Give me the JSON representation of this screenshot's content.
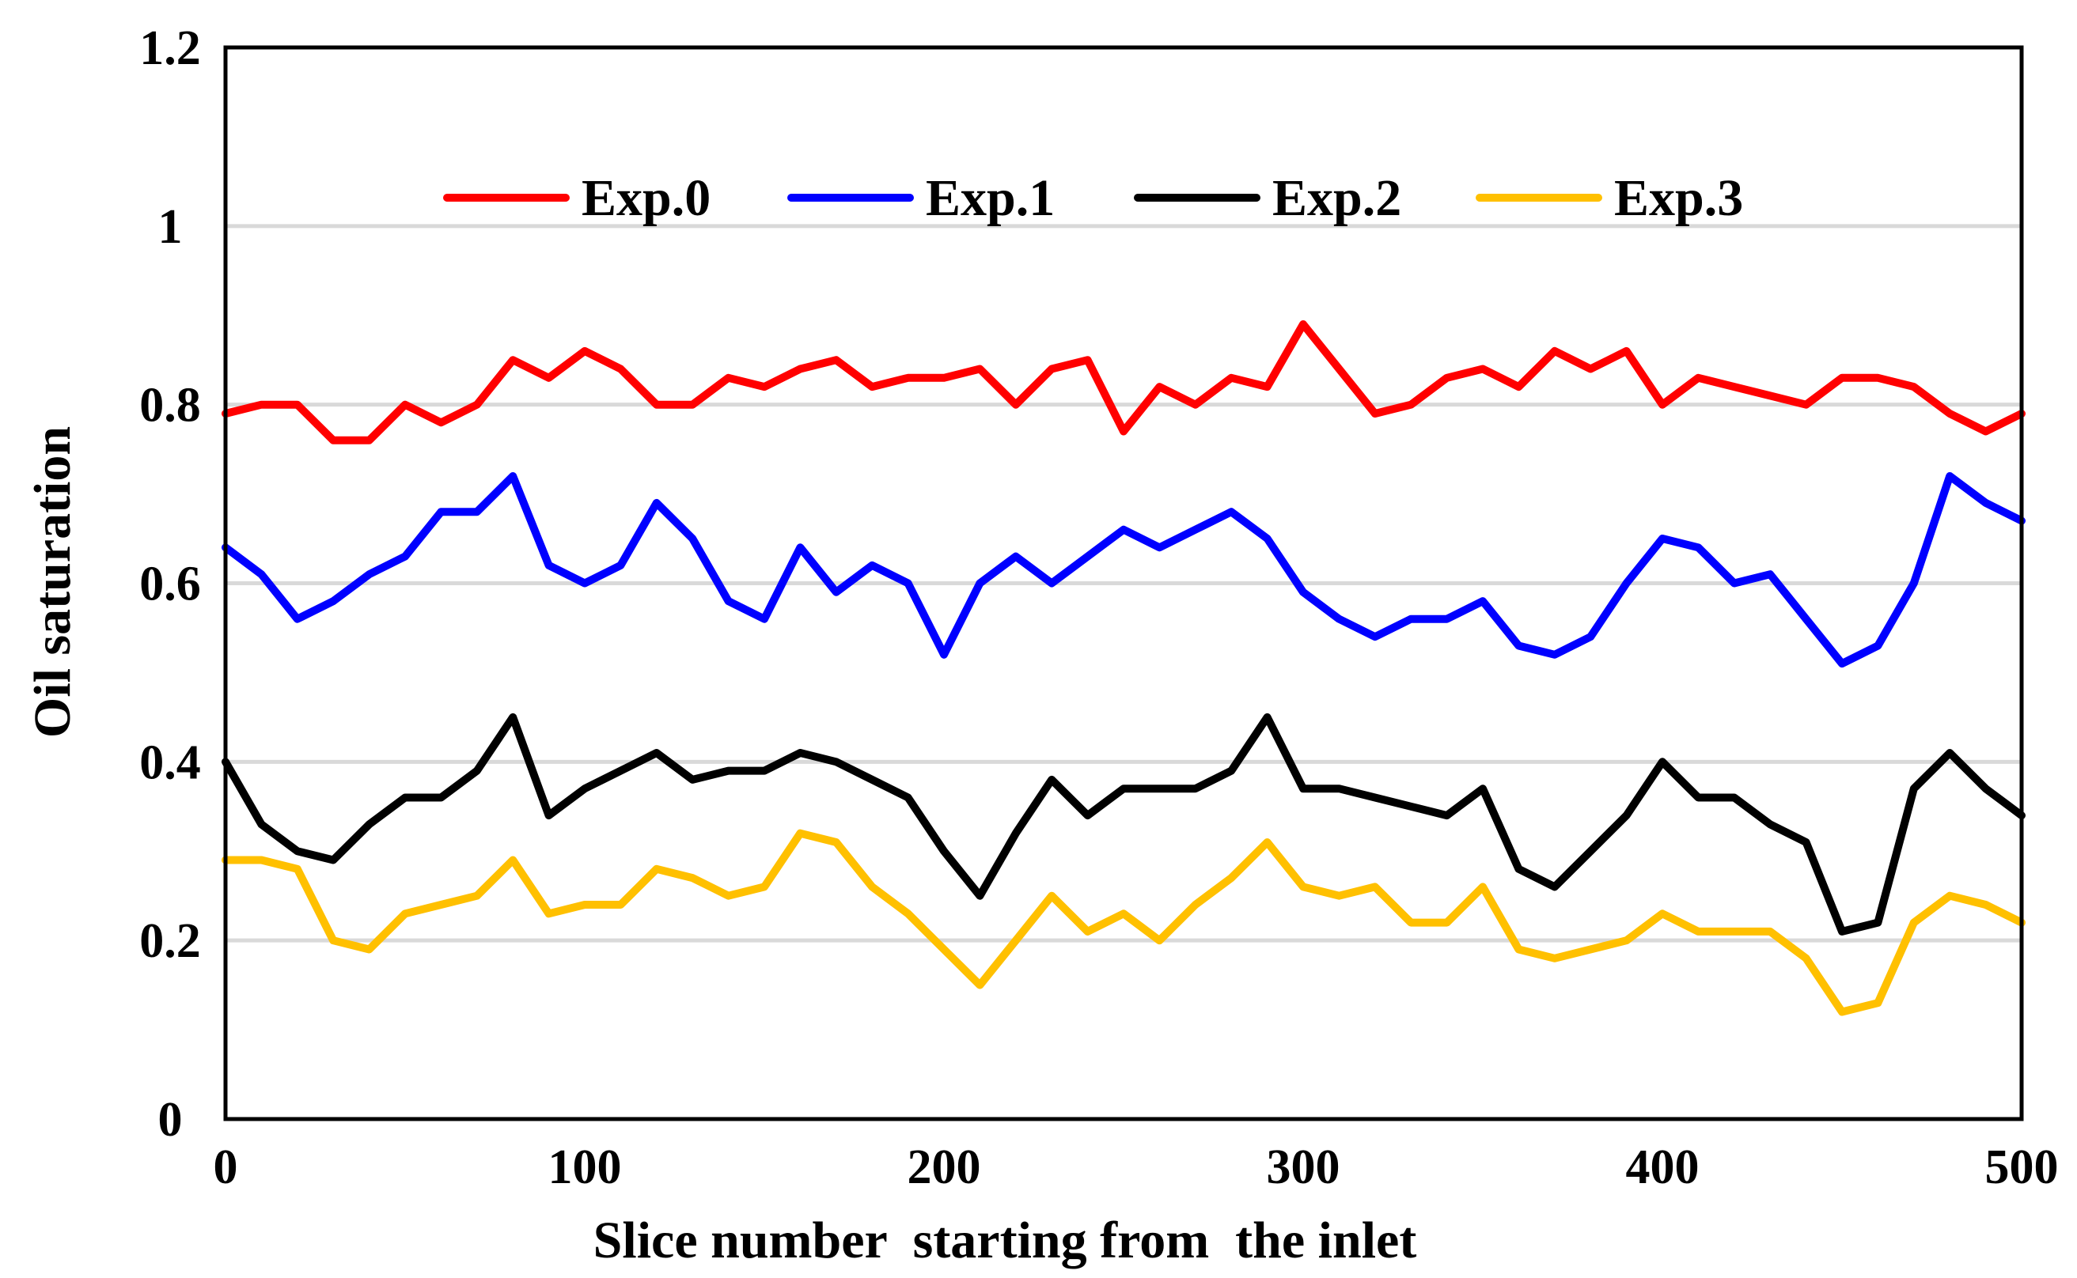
{
  "chart_data": {
    "type": "line",
    "title": "",
    "xlabel": "Slice number  starting from  the inlet",
    "ylabel": "Oil saturation",
    "xlim": [
      0,
      500
    ],
    "ylim": [
      0,
      1.2
    ],
    "xticks": [
      0,
      100,
      200,
      300,
      400,
      500
    ],
    "xtick_labels": [
      "0",
      "100",
      "200",
      "300",
      "400",
      "500"
    ],
    "yticks": [
      0,
      0.2,
      0.4,
      0.6,
      0.8,
      1,
      1.2
    ],
    "ytick_labels": [
      "0",
      "0.2",
      "0.4",
      "0.6",
      "0.8",
      "1",
      "1.2"
    ],
    "grid": "horizontal",
    "legend_position": "top-center",
    "x": [
      0,
      10,
      20,
      30,
      40,
      50,
      60,
      70,
      80,
      90,
      100,
      110,
      120,
      130,
      140,
      150,
      160,
      170,
      180,
      190,
      200,
      210,
      220,
      230,
      240,
      250,
      260,
      270,
      280,
      290,
      300,
      310,
      320,
      330,
      340,
      350,
      360,
      370,
      380,
      390,
      400,
      410,
      420,
      430,
      440,
      450,
      460,
      470,
      480,
      490,
      500
    ],
    "series": [
      {
        "name": "Exp.0",
        "color": "#ff0000",
        "values": [
          0.79,
          0.8,
          0.8,
          0.76,
          0.76,
          0.8,
          0.78,
          0.8,
          0.85,
          0.83,
          0.86,
          0.84,
          0.8,
          0.8,
          0.83,
          0.82,
          0.84,
          0.85,
          0.82,
          0.83,
          0.83,
          0.84,
          0.8,
          0.84,
          0.85,
          0.77,
          0.82,
          0.8,
          0.83,
          0.82,
          0.89,
          0.84,
          0.79,
          0.8,
          0.83,
          0.84,
          0.82,
          0.86,
          0.84,
          0.86,
          0.8,
          0.83,
          0.82,
          0.81,
          0.8,
          0.83,
          0.83,
          0.82,
          0.79,
          0.77,
          0.79
        ]
      },
      {
        "name": "Exp.1",
        "color": "#0000ff",
        "values": [
          0.64,
          0.61,
          0.56,
          0.58,
          0.61,
          0.63,
          0.68,
          0.68,
          0.72,
          0.62,
          0.6,
          0.62,
          0.69,
          0.65,
          0.58,
          0.56,
          0.64,
          0.59,
          0.62,
          0.6,
          0.52,
          0.6,
          0.63,
          0.6,
          0.63,
          0.66,
          0.64,
          0.66,
          0.68,
          0.65,
          0.59,
          0.56,
          0.54,
          0.56,
          0.56,
          0.58,
          0.53,
          0.52,
          0.54,
          0.6,
          0.65,
          0.64,
          0.6,
          0.61,
          0.56,
          0.51,
          0.53,
          0.6,
          0.72,
          0.69,
          0.67
        ]
      },
      {
        "name": "Exp.2",
        "color": "#000000",
        "values": [
          0.4,
          0.33,
          0.3,
          0.29,
          0.33,
          0.36,
          0.36,
          0.39,
          0.45,
          0.34,
          0.37,
          0.39,
          0.41,
          0.38,
          0.39,
          0.39,
          0.41,
          0.4,
          0.38,
          0.36,
          0.3,
          0.25,
          0.32,
          0.38,
          0.34,
          0.37,
          0.37,
          0.37,
          0.39,
          0.45,
          0.37,
          0.37,
          0.36,
          0.35,
          0.34,
          0.37,
          0.28,
          0.26,
          0.3,
          0.34,
          0.4,
          0.36,
          0.36,
          0.33,
          0.31,
          0.21,
          0.22,
          0.37,
          0.41,
          0.37,
          0.34
        ]
      },
      {
        "name": "Exp.3",
        "color": "#ffc000",
        "values": [
          0.29,
          0.29,
          0.28,
          0.2,
          0.19,
          0.23,
          0.24,
          0.25,
          0.29,
          0.23,
          0.24,
          0.24,
          0.28,
          0.27,
          0.25,
          0.26,
          0.32,
          0.31,
          0.26,
          0.23,
          0.19,
          0.15,
          0.2,
          0.25,
          0.21,
          0.23,
          0.2,
          0.24,
          0.27,
          0.31,
          0.26,
          0.25,
          0.26,
          0.22,
          0.22,
          0.26,
          0.19,
          0.18,
          0.19,
          0.2,
          0.23,
          0.21,
          0.21,
          0.21,
          0.18,
          0.12,
          0.13,
          0.22,
          0.25,
          0.24,
          0.22
        ]
      }
    ]
  }
}
